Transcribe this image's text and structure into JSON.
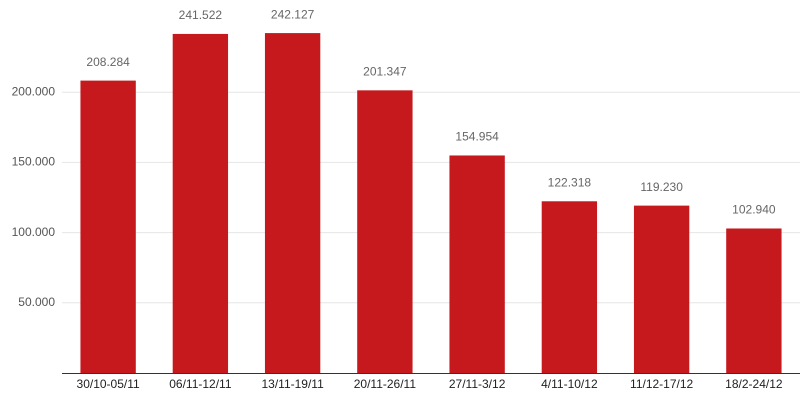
{
  "chart_data": {
    "type": "bar",
    "categories": [
      "30/10-05/11",
      "06/11-12/11",
      "13/11-19/11",
      "20/11-26/11",
      "27/11-3/12",
      "4/11-10/12",
      "11/12-17/12",
      "18/2-24/12"
    ],
    "values": [
      208284,
      241522,
      242127,
      201347,
      154954,
      122318,
      119230,
      102940
    ],
    "value_labels": [
      "208.284",
      "241.522",
      "242.127",
      "201.347",
      "154.954",
      "122.318",
      "119.230",
      "102.940"
    ],
    "color": "#c5191d",
    "ylim": [
      0,
      260000
    ],
    "yticks": [
      {
        "value": 50000,
        "label": "50.000"
      },
      {
        "value": 100000,
        "label": "100.000"
      },
      {
        "value": 150000,
        "label": "150.000"
      },
      {
        "value": 200000,
        "label": "200.000"
      }
    ],
    "grid": true
  }
}
